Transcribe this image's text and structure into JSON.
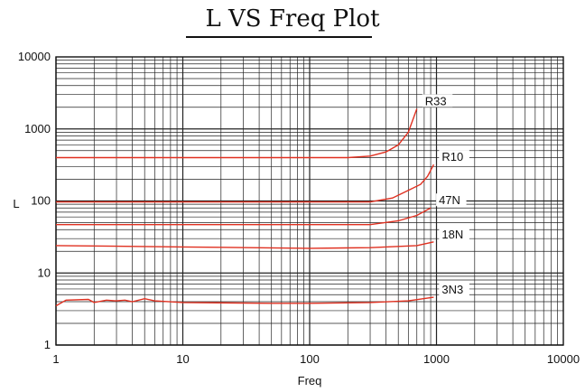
{
  "chart_data": {
    "type": "line",
    "title": "L VS Freq Plot",
    "xlabel": "Freq",
    "ylabel": "L",
    "xscale": "log",
    "yscale": "log",
    "xlim": [
      1,
      10000
    ],
    "ylim": [
      1,
      10000
    ],
    "x_ticks": [
      "1",
      "10",
      "100",
      "1000",
      "10000"
    ],
    "y_ticks": [
      "1",
      "10",
      "100",
      "1000",
      "10000"
    ],
    "grid": true,
    "line_color": "#e03020",
    "series": [
      {
        "name": "R33",
        "points": [
          [
            1,
            400
          ],
          [
            10,
            400
          ],
          [
            50,
            400
          ],
          [
            200,
            400
          ],
          [
            300,
            420
          ],
          [
            400,
            480
          ],
          [
            500,
            600
          ],
          [
            600,
            900
          ],
          [
            700,
            1900
          ]
        ]
      },
      {
        "name": "R10",
        "points": [
          [
            1,
            97
          ],
          [
            10,
            97
          ],
          [
            100,
            97
          ],
          [
            300,
            97
          ],
          [
            450,
            110
          ],
          [
            600,
            140
          ],
          [
            750,
            170
          ],
          [
            850,
            220
          ],
          [
            950,
            320
          ]
        ]
      },
      {
        "name": "47N",
        "points": [
          [
            1,
            47
          ],
          [
            10,
            47
          ],
          [
            100,
            47
          ],
          [
            300,
            47
          ],
          [
            500,
            53
          ],
          [
            700,
            63
          ],
          [
            900,
            80
          ]
        ]
      },
      {
        "name": "18N",
        "points": [
          [
            1,
            24
          ],
          [
            10,
            23
          ],
          [
            100,
            22
          ],
          [
            300,
            22.5
          ],
          [
            700,
            24
          ],
          [
            950,
            27
          ]
        ]
      },
      {
        "name": "3N3",
        "points": [
          [
            1,
            3.5
          ],
          [
            1.2,
            4.2
          ],
          [
            1.8,
            4.3
          ],
          [
            2,
            3.9
          ],
          [
            2.5,
            4.2
          ],
          [
            3,
            4.1
          ],
          [
            3.5,
            4.2
          ],
          [
            4,
            4.0
          ],
          [
            5,
            4.4
          ],
          [
            6,
            4.1
          ],
          [
            10,
            3.9
          ],
          [
            50,
            3.8
          ],
          [
            100,
            3.8
          ],
          [
            300,
            3.9
          ],
          [
            600,
            4.1
          ],
          [
            950,
            4.6
          ]
        ]
      }
    ]
  }
}
